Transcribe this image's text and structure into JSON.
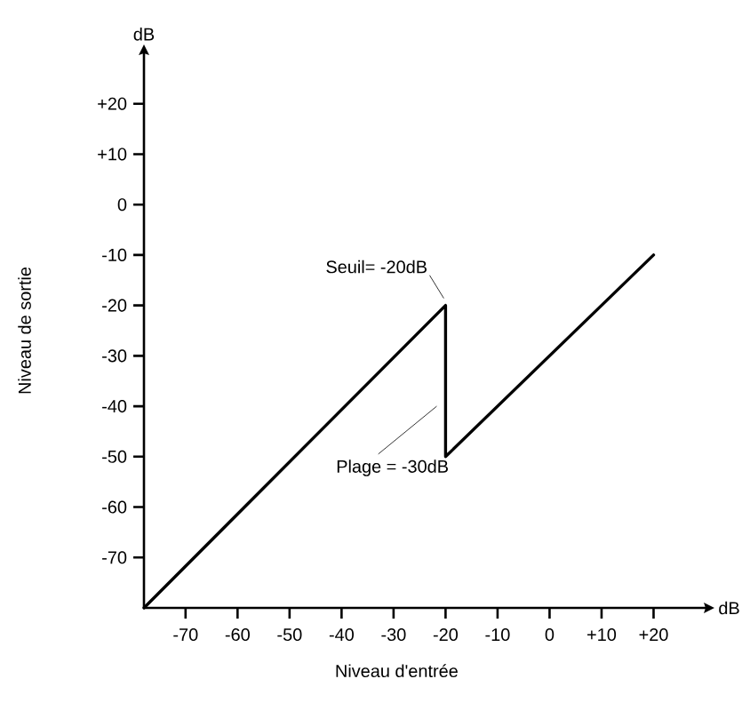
{
  "chart_data": {
    "type": "line",
    "xlabel": "Niveau d'entrée",
    "ylabel": "Niveau de sortie",
    "x": [
      -78,
      -20,
      -20,
      20
    ],
    "series": [
      {
        "color": "#000000",
        "values": [
          -80,
          -20,
          -50,
          -10
        ]
      }
    ],
    "xlim": [
      -78,
      30
    ],
    "ylim": [
      -80,
      30
    ],
    "xticks": [
      -70,
      -60,
      -50,
      -40,
      -30,
      -20,
      -10,
      0,
      {
        "value": 10,
        "label": "+10"
      },
      {
        "value": 20,
        "label": "+20"
      }
    ],
    "yticks": [
      -70,
      -60,
      -50,
      -40,
      -30,
      -20,
      -10,
      0,
      {
        "value": 10,
        "label": "+10"
      },
      {
        "value": 20,
        "label": "+20"
      }
    ],
    "annotations": [
      {
        "text": "Seuil= -20dB",
        "x": -20,
        "y": -20
      },
      {
        "text": "Plage = -30dB",
        "x": -20,
        "y": -40
      },
      "dB",
      "dB"
    ],
    "grid": false,
    "marker": "none",
    "line_style": "solid"
  }
}
